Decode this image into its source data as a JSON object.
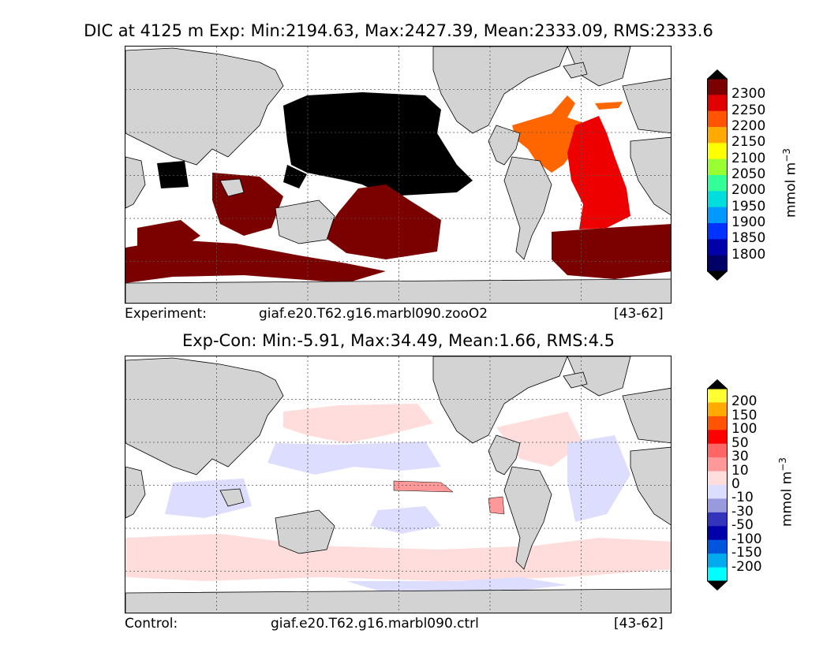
{
  "top": {
    "title": "DIC at 4125 m Exp: Min:2194.63, Max:2427.39, Mean:2333.09, RMS:2333.6",
    "caption_label": "Experiment:",
    "caption_case": "giaf.e20.T62.g16.marbl090.zooO2",
    "caption_years": "[43-62]",
    "colorbar": {
      "units": "mmol m",
      "units_exp": "−3",
      "ticks": [
        "2300",
        "2250",
        "2200",
        "2150",
        "2100",
        "2050",
        "2000",
        "1950",
        "1900",
        "1850",
        "1800"
      ],
      "colors": [
        "#7b0000",
        "#e00000",
        "#ff5500",
        "#ffaa00",
        "#ffff00",
        "#99ff33",
        "#33ff99",
        "#00dddd",
        "#0099ff",
        "#0033ff",
        "#0000aa",
        "#000066"
      ],
      "over_color": "#000000",
      "under_color": "#000000"
    }
  },
  "bottom": {
    "title": "Exp-Con: Min:-5.91, Max:34.49, Mean:1.66, RMS:4.5",
    "caption_label": "Control:",
    "caption_case": "giaf.e20.T62.g16.marbl090.ctrl",
    "caption_years": "[43-62]",
    "colorbar": {
      "units": "mmol m",
      "units_exp": "−3",
      "ticks": [
        "200",
        "150",
        "100",
        "50",
        "30",
        "10",
        "0",
        "-10",
        "-30",
        "-50",
        "-100",
        "-150",
        "-200"
      ],
      "colors": [
        "#ffff33",
        "#ffaa00",
        "#ff5500",
        "#ff0000",
        "#ff6666",
        "#ff9999",
        "#ffdddd",
        "#ddddff",
        "#9999dd",
        "#3333bb",
        "#0000aa",
        "#0055dd",
        "#00aaee",
        "#00ffff"
      ],
      "over_color": "#000000",
      "under_color": "#000000"
    }
  },
  "map_colors": {
    "land": "#d3d3d3",
    "ocean": "#ffffff",
    "grid": "#555555"
  }
}
